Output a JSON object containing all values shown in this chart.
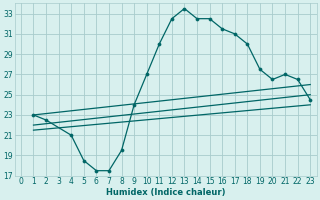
{
  "xlabel": "Humidex (Indice chaleur)",
  "bg_color": "#d8f0ee",
  "grid_color": "#a8cccc",
  "line_color": "#006666",
  "xlim": [
    -0.5,
    23.5
  ],
  "ylim": [
    17,
    34
  ],
  "xticks": [
    0,
    1,
    2,
    3,
    4,
    5,
    6,
    7,
    8,
    9,
    10,
    11,
    12,
    13,
    14,
    15,
    16,
    17,
    18,
    19,
    20,
    21,
    22,
    23
  ],
  "yticks": [
    17,
    19,
    21,
    23,
    25,
    27,
    29,
    31,
    33
  ],
  "main_x": [
    1,
    2,
    4,
    5,
    6,
    7,
    8,
    9,
    10,
    11,
    12,
    13,
    14,
    15,
    16,
    17,
    18,
    19,
    20,
    21,
    22,
    23
  ],
  "main_y": [
    23,
    22.5,
    21,
    18.5,
    17.5,
    17.5,
    19.5,
    24,
    27,
    30,
    32.5,
    33.5,
    32.5,
    32.5,
    31.5,
    31,
    30,
    27.5,
    26.5,
    27,
    26.5,
    24.5
  ],
  "line1_x": [
    1,
    23
  ],
  "line1_y": [
    23,
    26
  ],
  "line2_x": [
    1,
    23
  ],
  "line2_y": [
    22,
    25
  ],
  "line3_x": [
    1,
    23
  ],
  "line3_y": [
    21.5,
    24
  ],
  "xlabel_fontsize": 6,
  "tick_fontsize": 5.5
}
